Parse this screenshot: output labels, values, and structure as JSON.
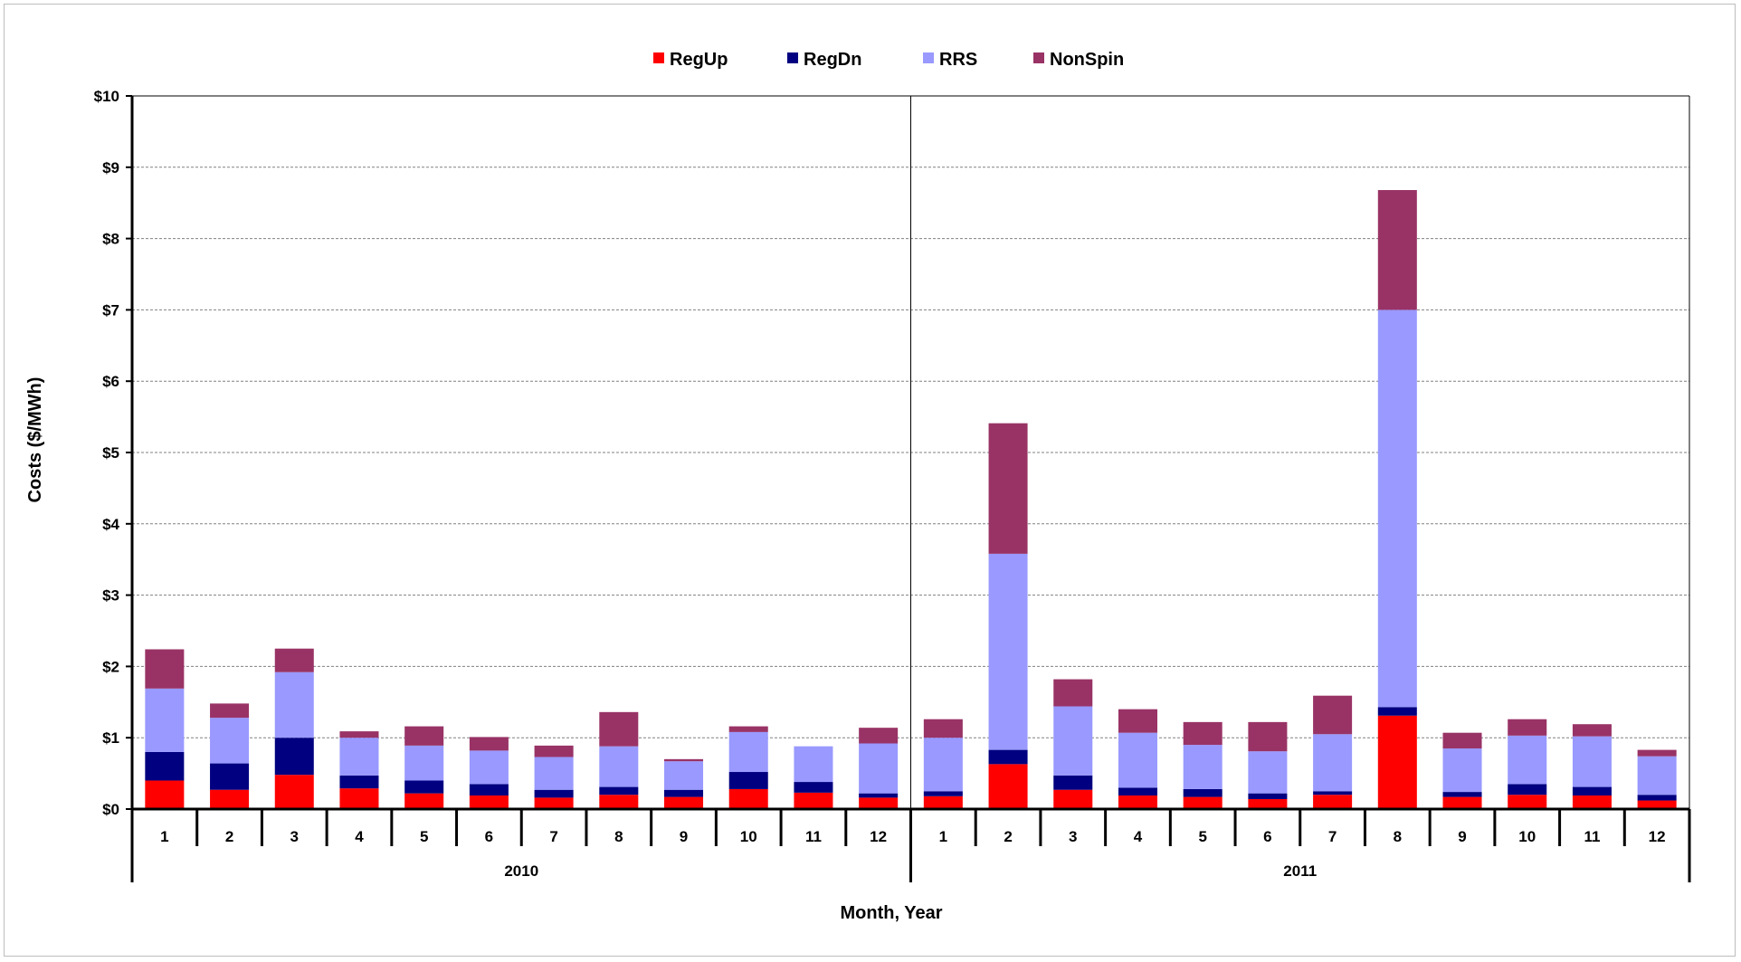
{
  "chart_data": {
    "type": "bar",
    "stacked": true,
    "ylabel": "Costs ($/MWh)",
    "xlabel": "Month, Year",
    "ylim": [
      0,
      10
    ],
    "y_ticks": [
      0,
      1,
      2,
      3,
      4,
      5,
      6,
      7,
      8,
      9,
      10
    ],
    "y_tick_labels": [
      "$0",
      "$1",
      "$2",
      "$3",
      "$4",
      "$5",
      "$6",
      "$7",
      "$8",
      "$9",
      "$10"
    ],
    "grid": true,
    "legend_position": "top-center",
    "groups": [
      {
        "label": "2010",
        "categories": [
          "1",
          "2",
          "3",
          "4",
          "5",
          "6",
          "7",
          "8",
          "9",
          "10",
          "11",
          "12"
        ]
      },
      {
        "label": "2011",
        "categories": [
          "1",
          "2",
          "3",
          "4",
          "5",
          "6",
          "7",
          "8",
          "9",
          "10",
          "11",
          "12"
        ]
      }
    ],
    "series": [
      {
        "name": "RegUp",
        "color": "#ff0000",
        "values": [
          0.4,
          0.27,
          0.48,
          0.29,
          0.22,
          0.19,
          0.16,
          0.2,
          0.17,
          0.28,
          0.23,
          0.16,
          0.18,
          0.63,
          0.27,
          0.19,
          0.17,
          0.14,
          0.2,
          1.31,
          0.17,
          0.2,
          0.19,
          0.12
        ]
      },
      {
        "name": "RegDn",
        "color": "#000080",
        "values": [
          0.4,
          0.37,
          0.52,
          0.18,
          0.18,
          0.16,
          0.11,
          0.11,
          0.1,
          0.24,
          0.15,
          0.06,
          0.07,
          0.2,
          0.2,
          0.11,
          0.11,
          0.08,
          0.05,
          0.12,
          0.07,
          0.15,
          0.12,
          0.08
        ]
      },
      {
        "name": "RRS",
        "color": "#9999ff",
        "values": [
          0.89,
          0.64,
          0.92,
          0.53,
          0.49,
          0.47,
          0.46,
          0.57,
          0.4,
          0.56,
          0.5,
          0.7,
          0.75,
          2.75,
          0.97,
          0.77,
          0.62,
          0.59,
          0.8,
          5.57,
          0.61,
          0.68,
          0.71,
          0.54
        ]
      },
      {
        "name": "NonSpin",
        "color": "#993366",
        "values": [
          0.55,
          0.2,
          0.33,
          0.09,
          0.27,
          0.19,
          0.16,
          0.48,
          0.03,
          0.08,
          0.0,
          0.22,
          0.26,
          1.83,
          0.38,
          0.33,
          0.32,
          0.41,
          0.54,
          1.68,
          0.22,
          0.23,
          0.17,
          0.09
        ]
      }
    ]
  }
}
